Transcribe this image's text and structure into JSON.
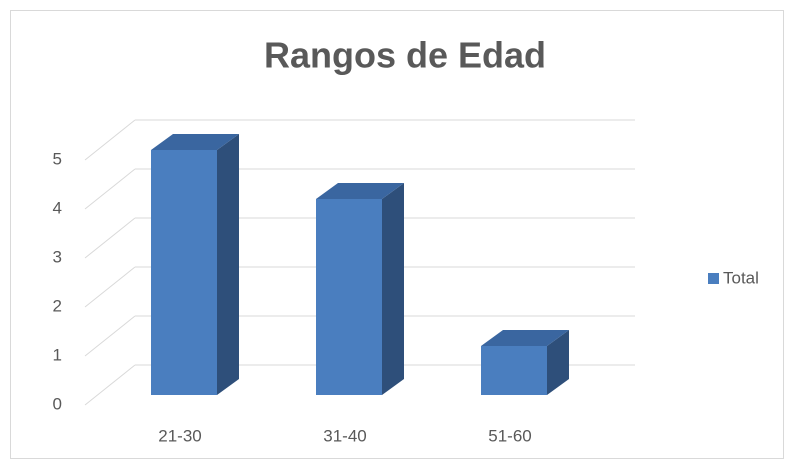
{
  "chart_data": {
    "type": "bar",
    "title": "Rangos de Edad",
    "categories": [
      "21-30",
      "31-40",
      "51-60"
    ],
    "series": [
      {
        "name": "Total",
        "color": "#4a7ebf",
        "values": [
          5,
          4,
          1
        ]
      }
    ],
    "ylim": [
      0,
      5
    ],
    "yticks": [
      0,
      1,
      2,
      3,
      4,
      5
    ],
    "grid": true,
    "legend": "right"
  }
}
